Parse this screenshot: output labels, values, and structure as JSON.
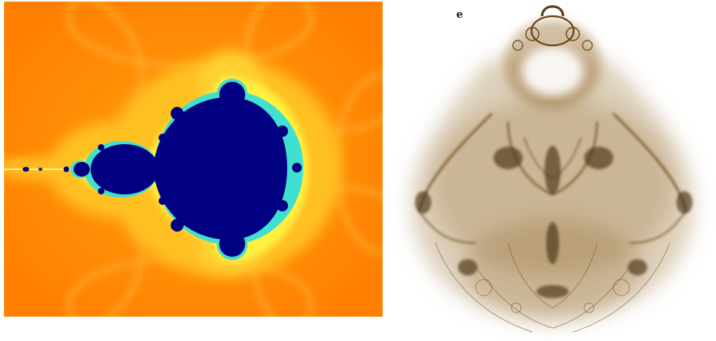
{
  "panels": [
    {
      "name": "mandelbrot-set",
      "label": "",
      "colors": {
        "background": "#ff8c00",
        "halo_light": "#ffc020",
        "halo_yellow": "#ffe830",
        "edge_cyan": "#40e0d0",
        "interior": "#000080"
      }
    },
    {
      "name": "buddhabrot",
      "label": "e",
      "colors": {
        "background": "#ffffff",
        "density": "#7a5420",
        "density_dark": "#4a3010"
      }
    }
  ]
}
